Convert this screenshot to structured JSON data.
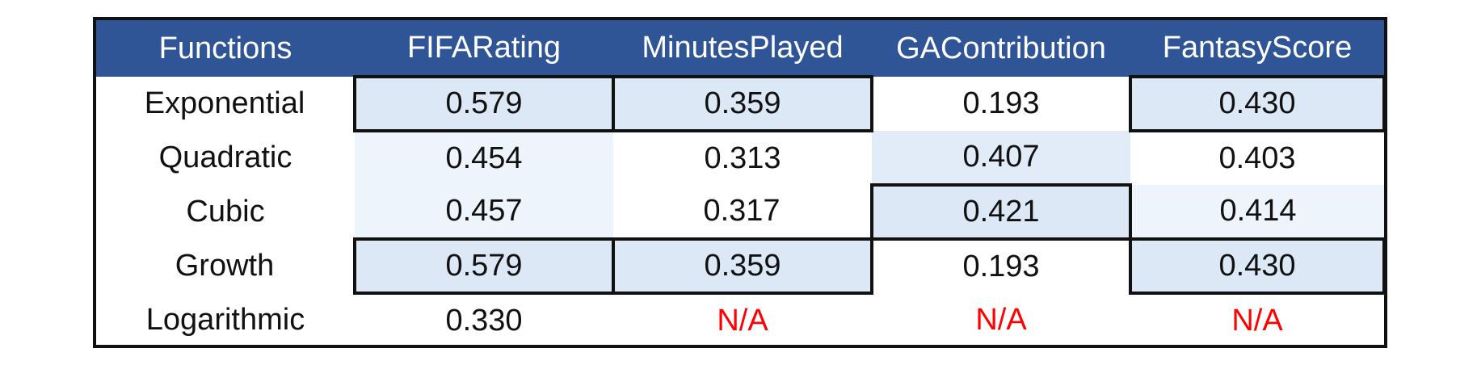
{
  "headers": [
    "Functions",
    "FIFARating",
    "MinutesPlayed",
    "GAContribution",
    "FantasyScore"
  ],
  "rows": [
    {
      "name": "Exponential",
      "values": [
        "0.579",
        "0.359",
        "0.193",
        "0.430"
      ]
    },
    {
      "name": "Quadratic",
      "values": [
        "0.454",
        "0.313",
        "0.407",
        "0.403"
      ]
    },
    {
      "name": "Cubic",
      "values": [
        "0.457",
        "0.317",
        "0.421",
        "0.414"
      ]
    },
    {
      "name": "Growth",
      "values": [
        "0.579",
        "0.359",
        "0.193",
        "0.430"
      ]
    },
    {
      "name": "Logarithmic",
      "values": [
        "0.330",
        "N/A",
        "N/A",
        "N/A"
      ]
    }
  ],
  "colors": {
    "header_bg": "#2f5597",
    "header_text": "#ffffff",
    "highlight_bg": "#dce8f6",
    "na_text": "#ff0000",
    "border": "#111111"
  }
}
